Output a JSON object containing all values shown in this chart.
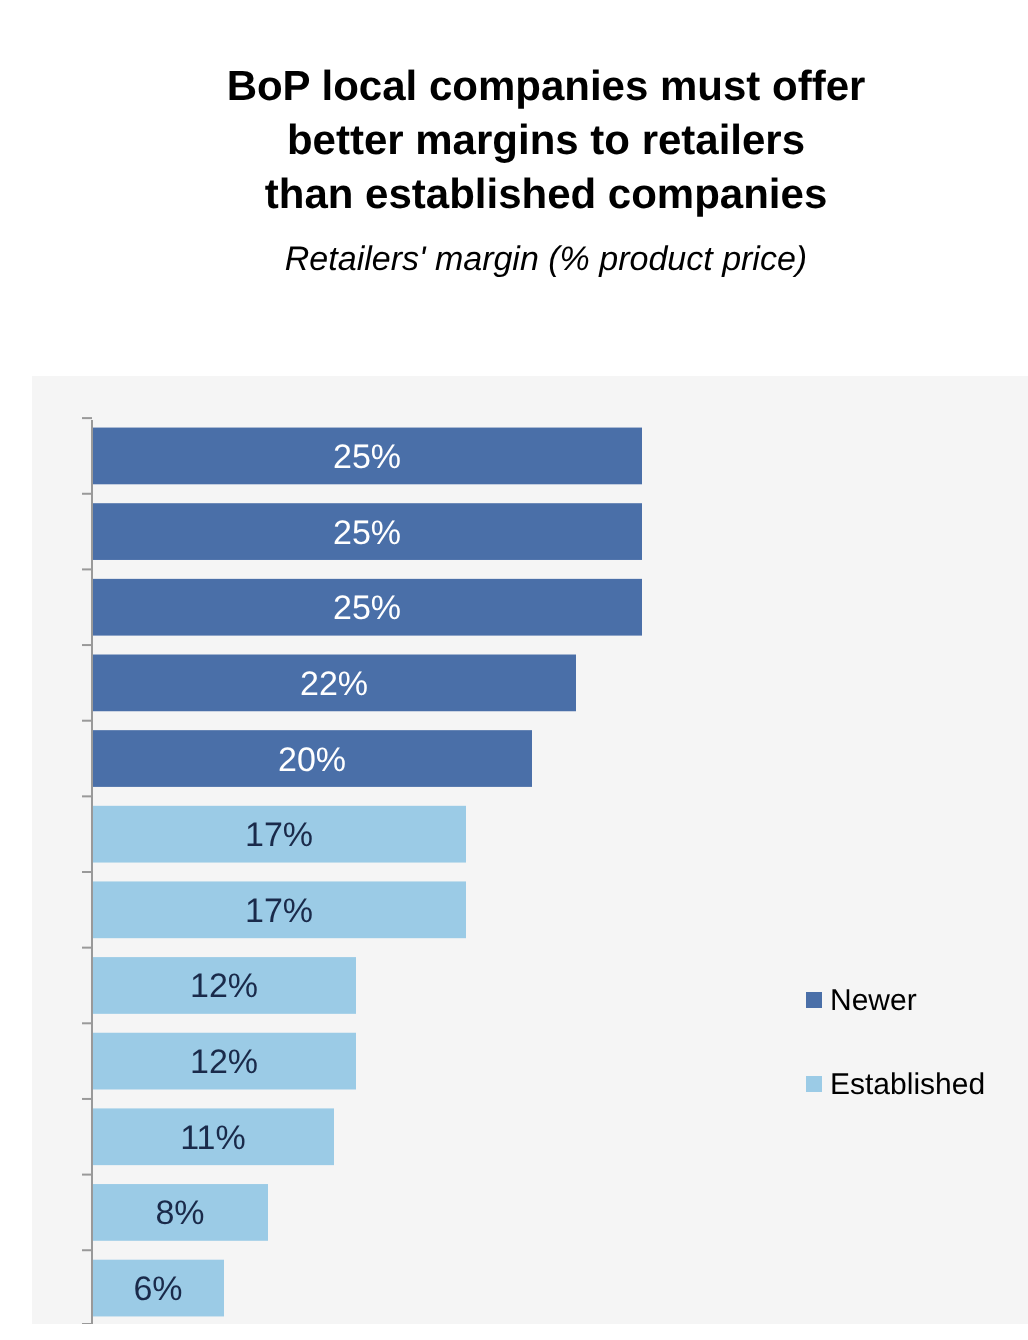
{
  "chart_data": {
    "type": "bar",
    "orientation": "horizontal",
    "title": "BoP local companies must offer better margins to retailers than established companies",
    "subtitle": "Retailers' margin (% product price)",
    "categories": [
      null,
      null,
      null,
      null,
      null,
      null,
      null,
      null,
      null,
      null,
      null,
      null
    ],
    "series": [
      {
        "name": "Newer",
        "color": "#4a6fa8",
        "values": [
          25,
          25,
          25,
          22,
          20,
          null,
          null,
          null,
          null,
          null,
          null,
          null
        ],
        "value_labels": [
          "25%",
          "25%",
          "25%",
          "22%",
          "20%",
          null,
          null,
          null,
          null,
          null,
          null,
          null
        ]
      },
      {
        "name": "Established",
        "color": "#9bcbe6",
        "values": [
          null,
          null,
          null,
          null,
          null,
          17,
          17,
          12,
          12,
          11,
          8,
          6
        ],
        "value_labels": [
          null,
          null,
          null,
          null,
          null,
          "17%",
          "17%",
          "12%",
          "12%",
          "11%",
          "8%",
          "6%"
        ]
      }
    ],
    "stacked": true,
    "legend": "right"
  }
}
